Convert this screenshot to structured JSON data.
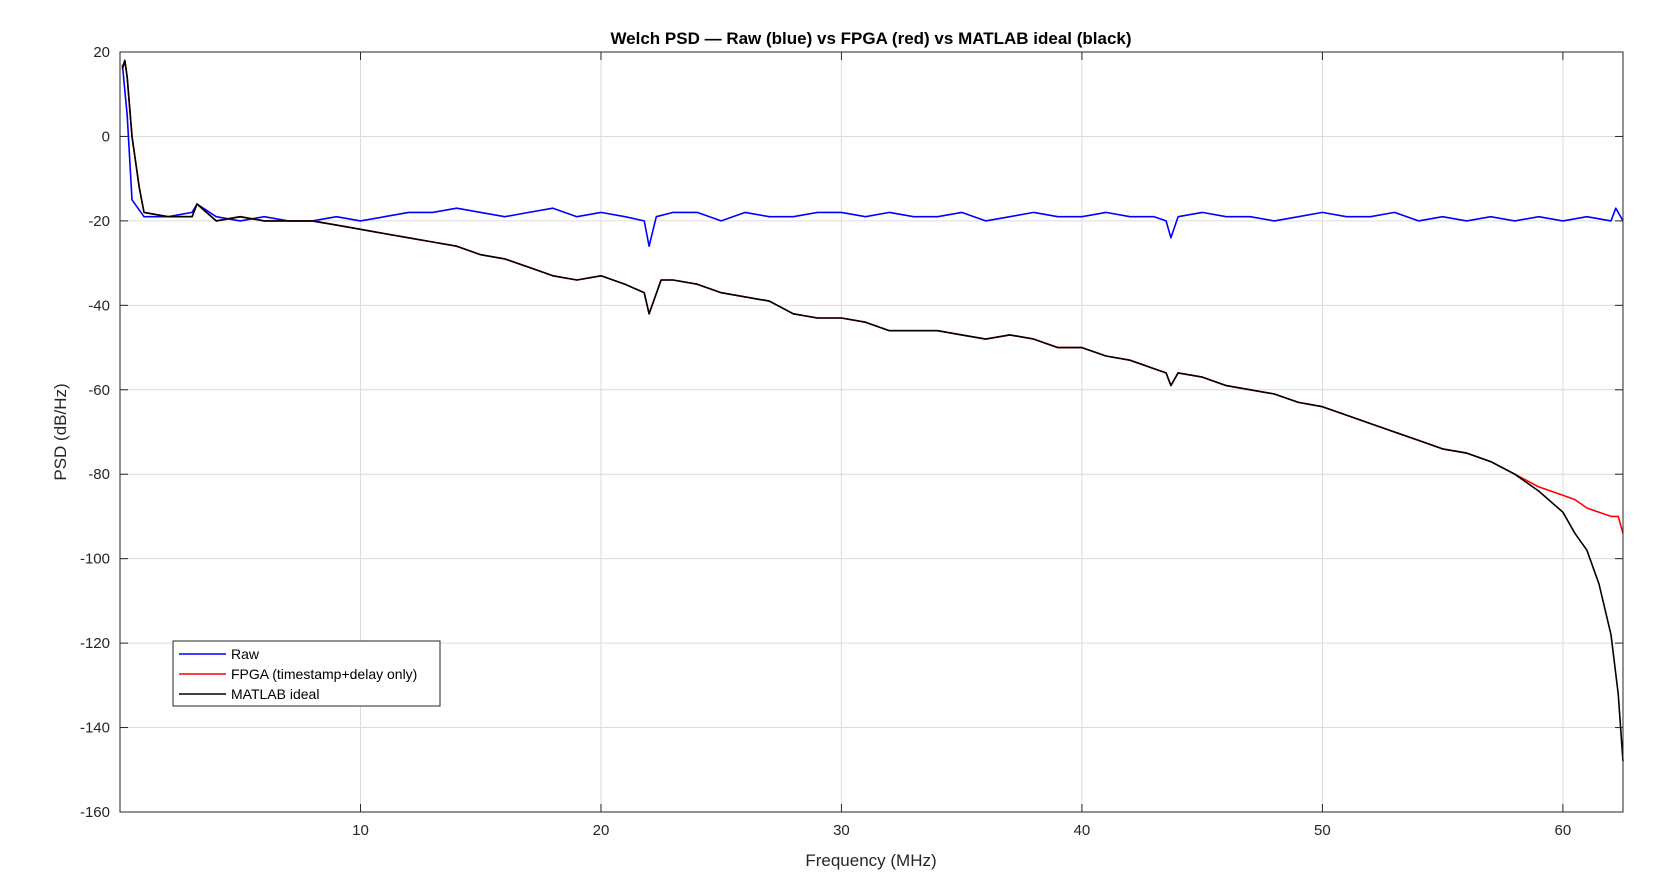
{
  "chart_data": {
    "type": "line",
    "title": "Welch PSD — Raw (blue) vs FPGA (red) vs MATLAB ideal (black)",
    "xlabel": "Frequency (MHz)",
    "ylabel": "PSD (dB/Hz)",
    "xlim": [
      0,
      62.5
    ],
    "ylim": [
      -160,
      20
    ],
    "xticks": [
      10,
      20,
      30,
      40,
      50,
      60
    ],
    "yticks": [
      20,
      0,
      -20,
      -40,
      -60,
      -80,
      -100,
      -120,
      -140,
      -160
    ],
    "xtick_labels": [
      "10",
      "20",
      "30",
      "40",
      "50",
      "60"
    ],
    "ytick_labels": [
      "20",
      "0",
      "-20",
      "-40",
      "-60",
      "-80",
      "-100",
      "-120",
      "-140",
      "-160"
    ],
    "grid": true,
    "legend_position": "bottom-left",
    "series": [
      {
        "name": "Raw",
        "color": "#0000ff",
        "x": [
          0.1,
          0.3,
          0.5,
          1,
          2,
          3,
          3.2,
          4,
          5,
          6,
          7,
          8,
          9,
          10,
          11,
          12,
          13,
          14,
          15,
          16,
          17,
          18,
          19,
          20,
          21,
          21.8,
          22,
          22.3,
          23,
          24,
          25,
          26,
          27,
          28,
          29,
          30,
          31,
          32,
          33,
          34,
          35,
          36,
          37,
          38,
          39,
          40,
          41,
          42,
          43,
          43.5,
          43.7,
          44,
          45,
          46,
          47,
          48,
          49,
          50,
          51,
          52,
          53,
          54,
          55,
          56,
          57,
          58,
          59,
          60,
          61,
          62,
          62.2,
          62.5
        ],
        "y": [
          17,
          5,
          -15,
          -19,
          -19,
          -18,
          -16,
          -19,
          -20,
          -19,
          -20,
          -20,
          -19,
          -20,
          -19,
          -18,
          -18,
          -17,
          -18,
          -19,
          -18,
          -17,
          -19,
          -18,
          -19,
          -20,
          -26,
          -19,
          -18,
          -18,
          -20,
          -18,
          -19,
          -19,
          -18,
          -18,
          -19,
          -18,
          -19,
          -19,
          -18,
          -20,
          -19,
          -18,
          -19,
          -19,
          -18,
          -19,
          -19,
          -20,
          -24,
          -19,
          -18,
          -19,
          -19,
          -20,
          -19,
          -18,
          -19,
          -19,
          -18,
          -20,
          -19,
          -20,
          -19,
          -20,
          -19,
          -20,
          -19,
          -20,
          -17,
          -20
        ]
      },
      {
        "name": "FPGA (timestamp+delay only)",
        "color": "#ff0000",
        "x": [
          0.1,
          0.2,
          0.3,
          0.5,
          0.8,
          1,
          2,
          3,
          3.2,
          4,
          5,
          6,
          7,
          8,
          9,
          10,
          11,
          12,
          13,
          14,
          15,
          16,
          17,
          18,
          19,
          20,
          21,
          21.8,
          22,
          22.5,
          23,
          24,
          25,
          26,
          27,
          28,
          29,
          30,
          31,
          32,
          33,
          34,
          35,
          36,
          37,
          38,
          39,
          40,
          41,
          42,
          43,
          43.5,
          43.7,
          44,
          45,
          46,
          47,
          48,
          49,
          50,
          51,
          52,
          53,
          54,
          55,
          56,
          57,
          58,
          59,
          60,
          60.5,
          61,
          61.5,
          62,
          62.3,
          62.5
        ],
        "y": [
          16,
          18,
          14,
          0,
          -12,
          -18,
          -19,
          -19,
          -16,
          -20,
          -19,
          -20,
          -20,
          -20,
          -21,
          -22,
          -23,
          -24,
          -25,
          -26,
          -28,
          -29,
          -31,
          -33,
          -34,
          -33,
          -35,
          -37,
          -42,
          -34,
          -34,
          -35,
          -37,
          -38,
          -39,
          -42,
          -43,
          -43,
          -44,
          -46,
          -46,
          -46,
          -47,
          -48,
          -47,
          -48,
          -50,
          -50,
          -52,
          -53,
          -55,
          -56,
          -59,
          -56,
          -57,
          -59,
          -60,
          -61,
          -63,
          -64,
          -66,
          -68,
          -70,
          -72,
          -74,
          -75,
          -77,
          -80,
          -83,
          -85,
          -86,
          -88,
          -89,
          -90,
          -90,
          -94
        ]
      },
      {
        "name": "MATLAB ideal",
        "color": "#000000",
        "x": [
          0.1,
          0.2,
          0.3,
          0.5,
          0.8,
          1,
          2,
          3,
          3.2,
          4,
          5,
          6,
          7,
          8,
          9,
          10,
          11,
          12,
          13,
          14,
          15,
          16,
          17,
          18,
          19,
          20,
          21,
          21.8,
          22,
          22.5,
          23,
          24,
          25,
          26,
          27,
          28,
          29,
          30,
          31,
          32,
          33,
          34,
          35,
          36,
          37,
          38,
          39,
          40,
          41,
          42,
          43,
          43.5,
          43.7,
          44,
          45,
          46,
          47,
          48,
          49,
          50,
          51,
          52,
          53,
          54,
          55,
          56,
          57,
          58,
          59,
          60,
          60.5,
          61,
          61.5,
          62,
          62.3,
          62.5
        ],
        "y": [
          16,
          18,
          14,
          0,
          -12,
          -18,
          -19,
          -19,
          -16,
          -20,
          -19,
          -20,
          -20,
          -20,
          -21,
          -22,
          -23,
          -24,
          -25,
          -26,
          -28,
          -29,
          -31,
          -33,
          -34,
          -33,
          -35,
          -37,
          -42,
          -34,
          -34,
          -35,
          -37,
          -38,
          -39,
          -42,
          -43,
          -43,
          -44,
          -46,
          -46,
          -46,
          -47,
          -48,
          -47,
          -48,
          -50,
          -50,
          -52,
          -53,
          -55,
          -56,
          -59,
          -56,
          -57,
          -59,
          -60,
          -61,
          -63,
          -64,
          -66,
          -68,
          -70,
          -72,
          -74,
          -75,
          -77,
          -80,
          -84,
          -89,
          -94,
          -98,
          -106,
          -118,
          -132,
          -148
        ]
      }
    ]
  }
}
